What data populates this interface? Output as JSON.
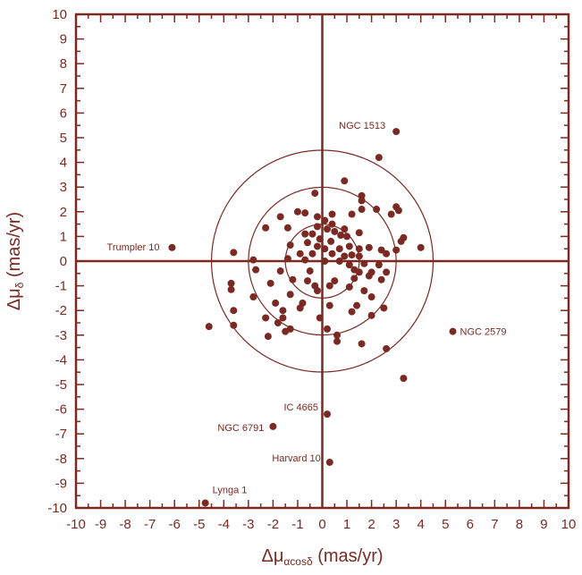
{
  "chart_data": {
    "type": "scatter",
    "xlabel": {
      "prefix": "Δμ",
      "sub": "αcosδ",
      "suffix": " (mas/yr)"
    },
    "ylabel": {
      "prefix": "Δμ",
      "sub": "δ",
      "suffix": " (mas/yr)"
    },
    "xlim": [
      -10,
      10
    ],
    "ylim": [
      -10,
      10
    ],
    "xticks": [
      "-10",
      "-9",
      "-8",
      "-7",
      "-6",
      "-5",
      "-4",
      "-3",
      "-2",
      "-1",
      "0",
      "1",
      "2",
      "3",
      "4",
      "5",
      "6",
      "7",
      "8",
      "9",
      "10"
    ],
    "yticks": [
      "-10",
      "-9",
      "-8",
      "-7",
      "-6",
      "-5",
      "-4",
      "-3",
      "-2",
      "-1",
      "0",
      "1",
      "2",
      "3",
      "4",
      "5",
      "6",
      "7",
      "8",
      "9",
      "10"
    ],
    "circles_radius": [
      1.5,
      3.0,
      4.5
    ],
    "color": "#7a2a22",
    "labeled_points": [
      {
        "label": "NGC 1513",
        "x": 3.0,
        "y": 5.25
      },
      {
        "label": "Trumpler 10",
        "x": -6.1,
        "y": 0.55
      },
      {
        "label": "NGC 2579",
        "x": 5.3,
        "y": -2.85
      },
      {
        "label": "IC 4665",
        "x": 0.2,
        "y": -6.2
      },
      {
        "label": "NGC 6791",
        "x": -2.0,
        "y": -6.7
      },
      {
        "label": "Harvard 10",
        "x": 0.3,
        "y": -8.15
      },
      {
        "label": "Lynga 1",
        "x": -4.75,
        "y": -9.8
      }
    ],
    "points": [
      {
        "x": 2.3,
        "y": 4.2
      },
      {
        "x": -0.3,
        "y": 2.75
      },
      {
        "x": 0.9,
        "y": 3.25
      },
      {
        "x": 1.6,
        "y": 2.65
      },
      {
        "x": 1.6,
        "y": 2.45
      },
      {
        "x": 3.0,
        "y": 2.2
      },
      {
        "x": 3.1,
        "y": 2.05
      },
      {
        "x": 2.2,
        "y": 2.1
      },
      {
        "x": 1.6,
        "y": 2.1
      },
      {
        "x": -1.0,
        "y": 2.0
      },
      {
        "x": -0.7,
        "y": 1.95
      },
      {
        "x": -1.7,
        "y": 1.8
      },
      {
        "x": 0.4,
        "y": 1.9
      },
      {
        "x": -0.2,
        "y": 1.8
      },
      {
        "x": 1.2,
        "y": 1.9
      },
      {
        "x": 2.8,
        "y": 1.9
      },
      {
        "x": -2.3,
        "y": 1.35
      },
      {
        "x": -1.4,
        "y": 1.35
      },
      {
        "x": -0.2,
        "y": 1.4
      },
      {
        "x": 0.4,
        "y": 1.5
      },
      {
        "x": 0.1,
        "y": 1.65
      },
      {
        "x": -0.7,
        "y": 1.1
      },
      {
        "x": -0.4,
        "y": 1.1
      },
      {
        "x": 0.2,
        "y": 1.3
      },
      {
        "x": 0.5,
        "y": 1.2
      },
      {
        "x": 0.9,
        "y": 1.3
      },
      {
        "x": 1.0,
        "y": 1.0
      },
      {
        "x": 1.5,
        "y": 1.15
      },
      {
        "x": -0.1,
        "y": 0.9
      },
      {
        "x": 0.35,
        "y": 0.8
      },
      {
        "x": 0.75,
        "y": 1.05
      },
      {
        "x": 3.3,
        "y": 0.95
      },
      {
        "x": 3.2,
        "y": 0.8
      },
      {
        "x": -3.6,
        "y": 0.35
      },
      {
        "x": -1.3,
        "y": 0.65
      },
      {
        "x": -0.6,
        "y": 0.75
      },
      {
        "x": -0.2,
        "y": 0.6
      },
      {
        "x": 0.1,
        "y": 0.5
      },
      {
        "x": 0.7,
        "y": 0.5
      },
      {
        "x": 1.1,
        "y": 0.6
      },
      {
        "x": 1.5,
        "y": 0.5
      },
      {
        "x": 1.9,
        "y": 0.55
      },
      {
        "x": 2.4,
        "y": 0.45
      },
      {
        "x": 3.0,
        "y": 0.45
      },
      {
        "x": 4.0,
        "y": 0.55
      },
      {
        "x": -0.9,
        "y": 0.3
      },
      {
        "x": -0.4,
        "y": 0.3
      },
      {
        "x": 0.4,
        "y": 0.3
      },
      {
        "x": 0.9,
        "y": 0.2
      },
      {
        "x": 1.2,
        "y": 0.25
      },
      {
        "x": 1.5,
        "y": 0.2
      },
      {
        "x": 2.6,
        "y": 0.3
      },
      {
        "x": -2.8,
        "y": 0.05
      },
      {
        "x": -1.4,
        "y": 0.1
      },
      {
        "x": -0.7,
        "y": 0.05
      },
      {
        "x": 0.1,
        "y": 0.0
      },
      {
        "x": 0.7,
        "y": 0.0
      },
      {
        "x": 1.1,
        "y": -0.15
      },
      {
        "x": 1.7,
        "y": -0.1
      },
      {
        "x": 2.3,
        "y": -0.15
      },
      {
        "x": -2.7,
        "y": -0.35
      },
      {
        "x": -1.7,
        "y": -0.4
      },
      {
        "x": -0.5,
        "y": -0.4
      },
      {
        "x": 1.3,
        "y": -0.35
      },
      {
        "x": 1.5,
        "y": -0.45
      },
      {
        "x": 2.0,
        "y": -0.45
      },
      {
        "x": 2.6,
        "y": -0.45
      },
      {
        "x": -3.7,
        "y": -0.9
      },
      {
        "x": -1.2,
        "y": -0.75
      },
      {
        "x": -0.6,
        "y": -0.8
      },
      {
        "x": 0.5,
        "y": -0.8
      },
      {
        "x": 1.3,
        "y": -0.7
      },
      {
        "x": 1.9,
        "y": -0.6
      },
      {
        "x": 2.4,
        "y": -0.75
      },
      {
        "x": -3.7,
        "y": -1.15
      },
      {
        "x": -2.1,
        "y": -0.9
      },
      {
        "x": -0.3,
        "y": -1.0
      },
      {
        "x": 0.3,
        "y": -1.0
      },
      {
        "x": 1.1,
        "y": -1.05
      },
      {
        "x": 1.7,
        "y": -1.2
      },
      {
        "x": -2.8,
        "y": -1.45
      },
      {
        "x": -1.3,
        "y": -1.35
      },
      {
        "x": -0.2,
        "y": -1.2
      },
      {
        "x": 2.0,
        "y": -1.45
      },
      {
        "x": -3.6,
        "y": -2.0
      },
      {
        "x": -1.9,
        "y": -1.7
      },
      {
        "x": -0.8,
        "y": -1.7
      },
      {
        "x": 0.3,
        "y": -1.8
      },
      {
        "x": 1.4,
        "y": -1.8
      },
      {
        "x": 2.5,
        "y": -1.9
      },
      {
        "x": -1.6,
        "y": -2.0
      },
      {
        "x": -0.9,
        "y": -1.9
      },
      {
        "x": 1.2,
        "y": -2.05
      },
      {
        "x": -2.3,
        "y": -2.3
      },
      {
        "x": -1.6,
        "y": -2.3
      },
      {
        "x": -0.1,
        "y": -2.3
      },
      {
        "x": 2.0,
        "y": -2.2
      },
      {
        "x": -3.6,
        "y": -2.6
      },
      {
        "x": -1.8,
        "y": -2.5
      },
      {
        "x": -4.6,
        "y": -2.65
      },
      {
        "x": -1.3,
        "y": -2.75
      },
      {
        "x": 0.2,
        "y": -2.75
      },
      {
        "x": -1.5,
        "y": -2.85
      },
      {
        "x": -2.2,
        "y": -3.05
      },
      {
        "x": 0.6,
        "y": -3.0
      },
      {
        "x": 0.6,
        "y": -3.25
      },
      {
        "x": 1.6,
        "y": -3.35
      },
      {
        "x": 2.6,
        "y": -3.55
      },
      {
        "x": 3.3,
        "y": -4.75
      }
    ]
  }
}
